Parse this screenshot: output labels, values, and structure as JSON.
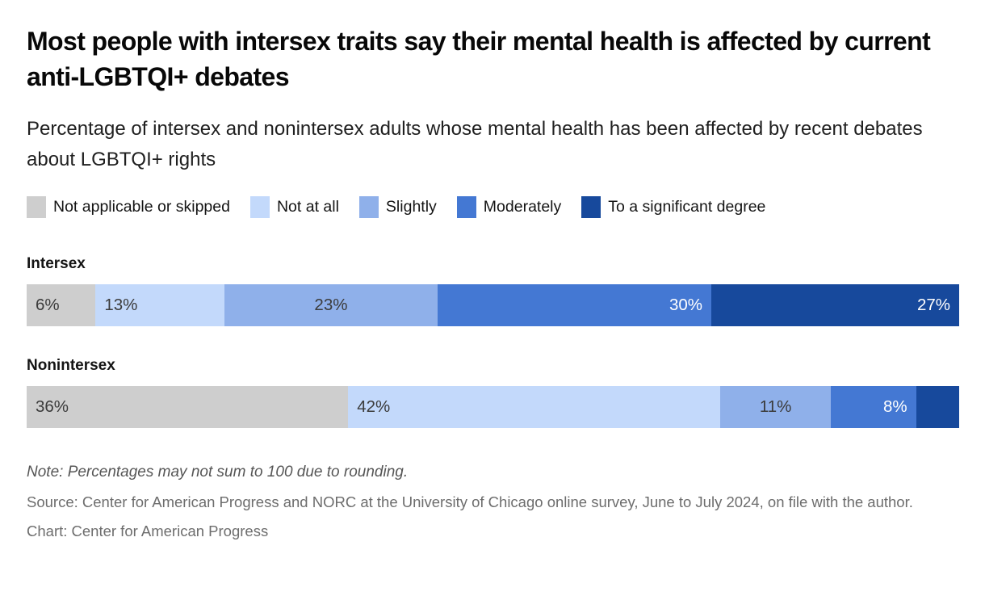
{
  "title": "Most people with intersex traits say their mental health is affected by current anti-LGBTQI+ debates",
  "subtitle": "Percentage of intersex and nonintersex adults whose mental health has been affected by recent debates about LGBTQI+ rights",
  "note": "Note: Percentages may not sum to 100 due to rounding.",
  "source": "Source: Center for American Progress and NORC at the University of Chicago online survey, June to July 2024, on file with the author.",
  "credit": "Chart: Center for American Progress",
  "colors": {
    "not_applicable": "#cecece",
    "not_at_all": "#c3d9fb",
    "slightly": "#8fb0ea",
    "moderately": "#4478d3",
    "significant": "#17499c",
    "dark_label": "#3b3b3b",
    "light_label": "#ffffff"
  },
  "chart_data": {
    "type": "bar",
    "variant": "horizontal-stacked-100",
    "categories": [
      "Intersex",
      "Nonintersex"
    ],
    "series": [
      {
        "name": "Not applicable or skipped",
        "color": "#cecece",
        "values": [
          6,
          36
        ],
        "labels": [
          "6%",
          "36%"
        ],
        "label_color": "#3b3b3b",
        "label_align": "left"
      },
      {
        "name": "Not at all",
        "color": "#c3d9fb",
        "values": [
          13,
          42
        ],
        "labels": [
          "13%",
          "42%"
        ],
        "label_color": "#3b3b3b",
        "label_align": "left"
      },
      {
        "name": "Slightly",
        "color": "#8fb0ea",
        "values": [
          23,
          11
        ],
        "labels": [
          "23%",
          "11%"
        ],
        "label_color": "#3b3b3b",
        "label_align": "center"
      },
      {
        "name": "Moderately",
        "color": "#4478d3",
        "values": [
          30,
          8
        ],
        "labels": [
          "30%",
          "8%"
        ],
        "label_color": "#ffffff",
        "label_align": "right"
      },
      {
        "name": "To a significant degree",
        "color": "#17499c",
        "values": [
          27,
          3
        ],
        "labels": [
          "27%",
          ""
        ],
        "label_color": "#ffffff",
        "label_align": "right"
      }
    ],
    "legend_position": "top",
    "axis_labels_hidden": true,
    "xlim": [
      0,
      100
    ]
  }
}
